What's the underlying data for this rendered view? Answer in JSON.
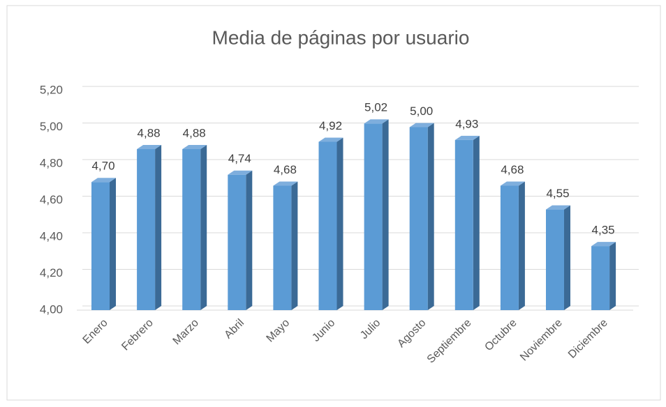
{
  "chart_data": {
    "type": "bar",
    "title": "Media de páginas por usuario",
    "categories": [
      "Enero",
      "Febrero",
      "Marzo",
      "Abril",
      "Mayo",
      "Junio",
      "Julio",
      "Agosto",
      "Septiembre",
      "Octubre",
      "Noviembre",
      "Diciembre"
    ],
    "values": [
      4.7,
      4.88,
      4.88,
      4.74,
      4.68,
      4.92,
      5.02,
      5.0,
      4.93,
      4.68,
      4.55,
      4.35
    ],
    "value_labels": [
      "4,70",
      "4,88",
      "4,88",
      "4,74",
      "4,68",
      "4,92",
      "5,02",
      "5,00",
      "4,93",
      "4,68",
      "4,55",
      "4,35"
    ],
    "color": "#5b9bd5",
    "ylim": [
      4.0,
      5.2
    ],
    "yticks": [
      {
        "value": 4.0,
        "label": "4,00"
      },
      {
        "value": 4.2,
        "label": "4,20"
      },
      {
        "value": 4.4,
        "label": "4,40"
      },
      {
        "value": 4.6,
        "label": "4,60"
      },
      {
        "value": 4.8,
        "label": "4,80"
      },
      {
        "value": 5.0,
        "label": "5,00"
      },
      {
        "value": 5.2,
        "label": "5,20"
      }
    ],
    "grid": true
  }
}
